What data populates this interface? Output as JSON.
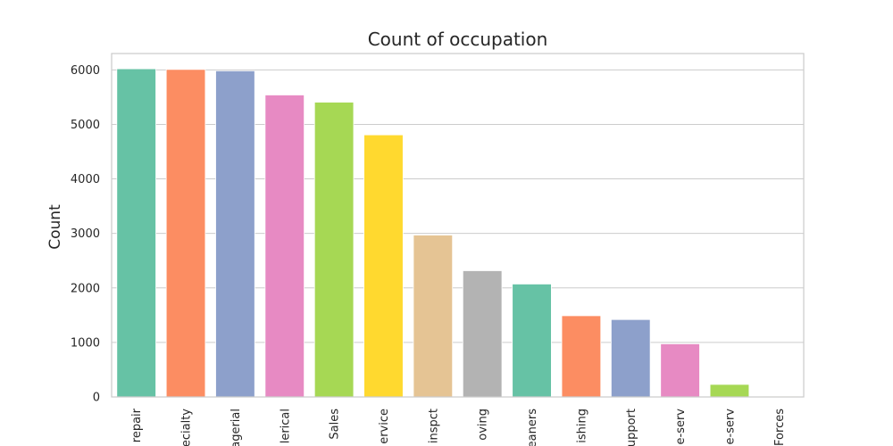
{
  "chart_data": {
    "type": "bar",
    "title": "Count of occupation",
    "xlabel": "",
    "ylabel": "Count",
    "ylim": [
      0,
      6300
    ],
    "yticks": [
      0,
      1000,
      2000,
      3000,
      4000,
      5000,
      6000
    ],
    "grid": "horizontal",
    "categories": [
      "repair",
      "ecialty",
      "agerial",
      "lerical",
      "Sales",
      "ervice",
      "inspct",
      "oving",
      "eaners",
      "ishing",
      "upport",
      "e-serv",
      "e-serv",
      "Forces"
    ],
    "values": [
      6020,
      6008,
      5983,
      5540,
      5408,
      4808,
      2970,
      2316,
      2072,
      1490,
      1420,
      975,
      230,
      9
    ],
    "colors": [
      "#66c2a5",
      "#fc8d62",
      "#8da0cb",
      "#e78ac3",
      "#a6d854",
      "#ffd92f",
      "#e5c494",
      "#b3b3b3",
      "#66c2a5",
      "#fc8d62",
      "#8da0cb",
      "#e78ac3",
      "#a6d854",
      "#ffd92f"
    ]
  }
}
